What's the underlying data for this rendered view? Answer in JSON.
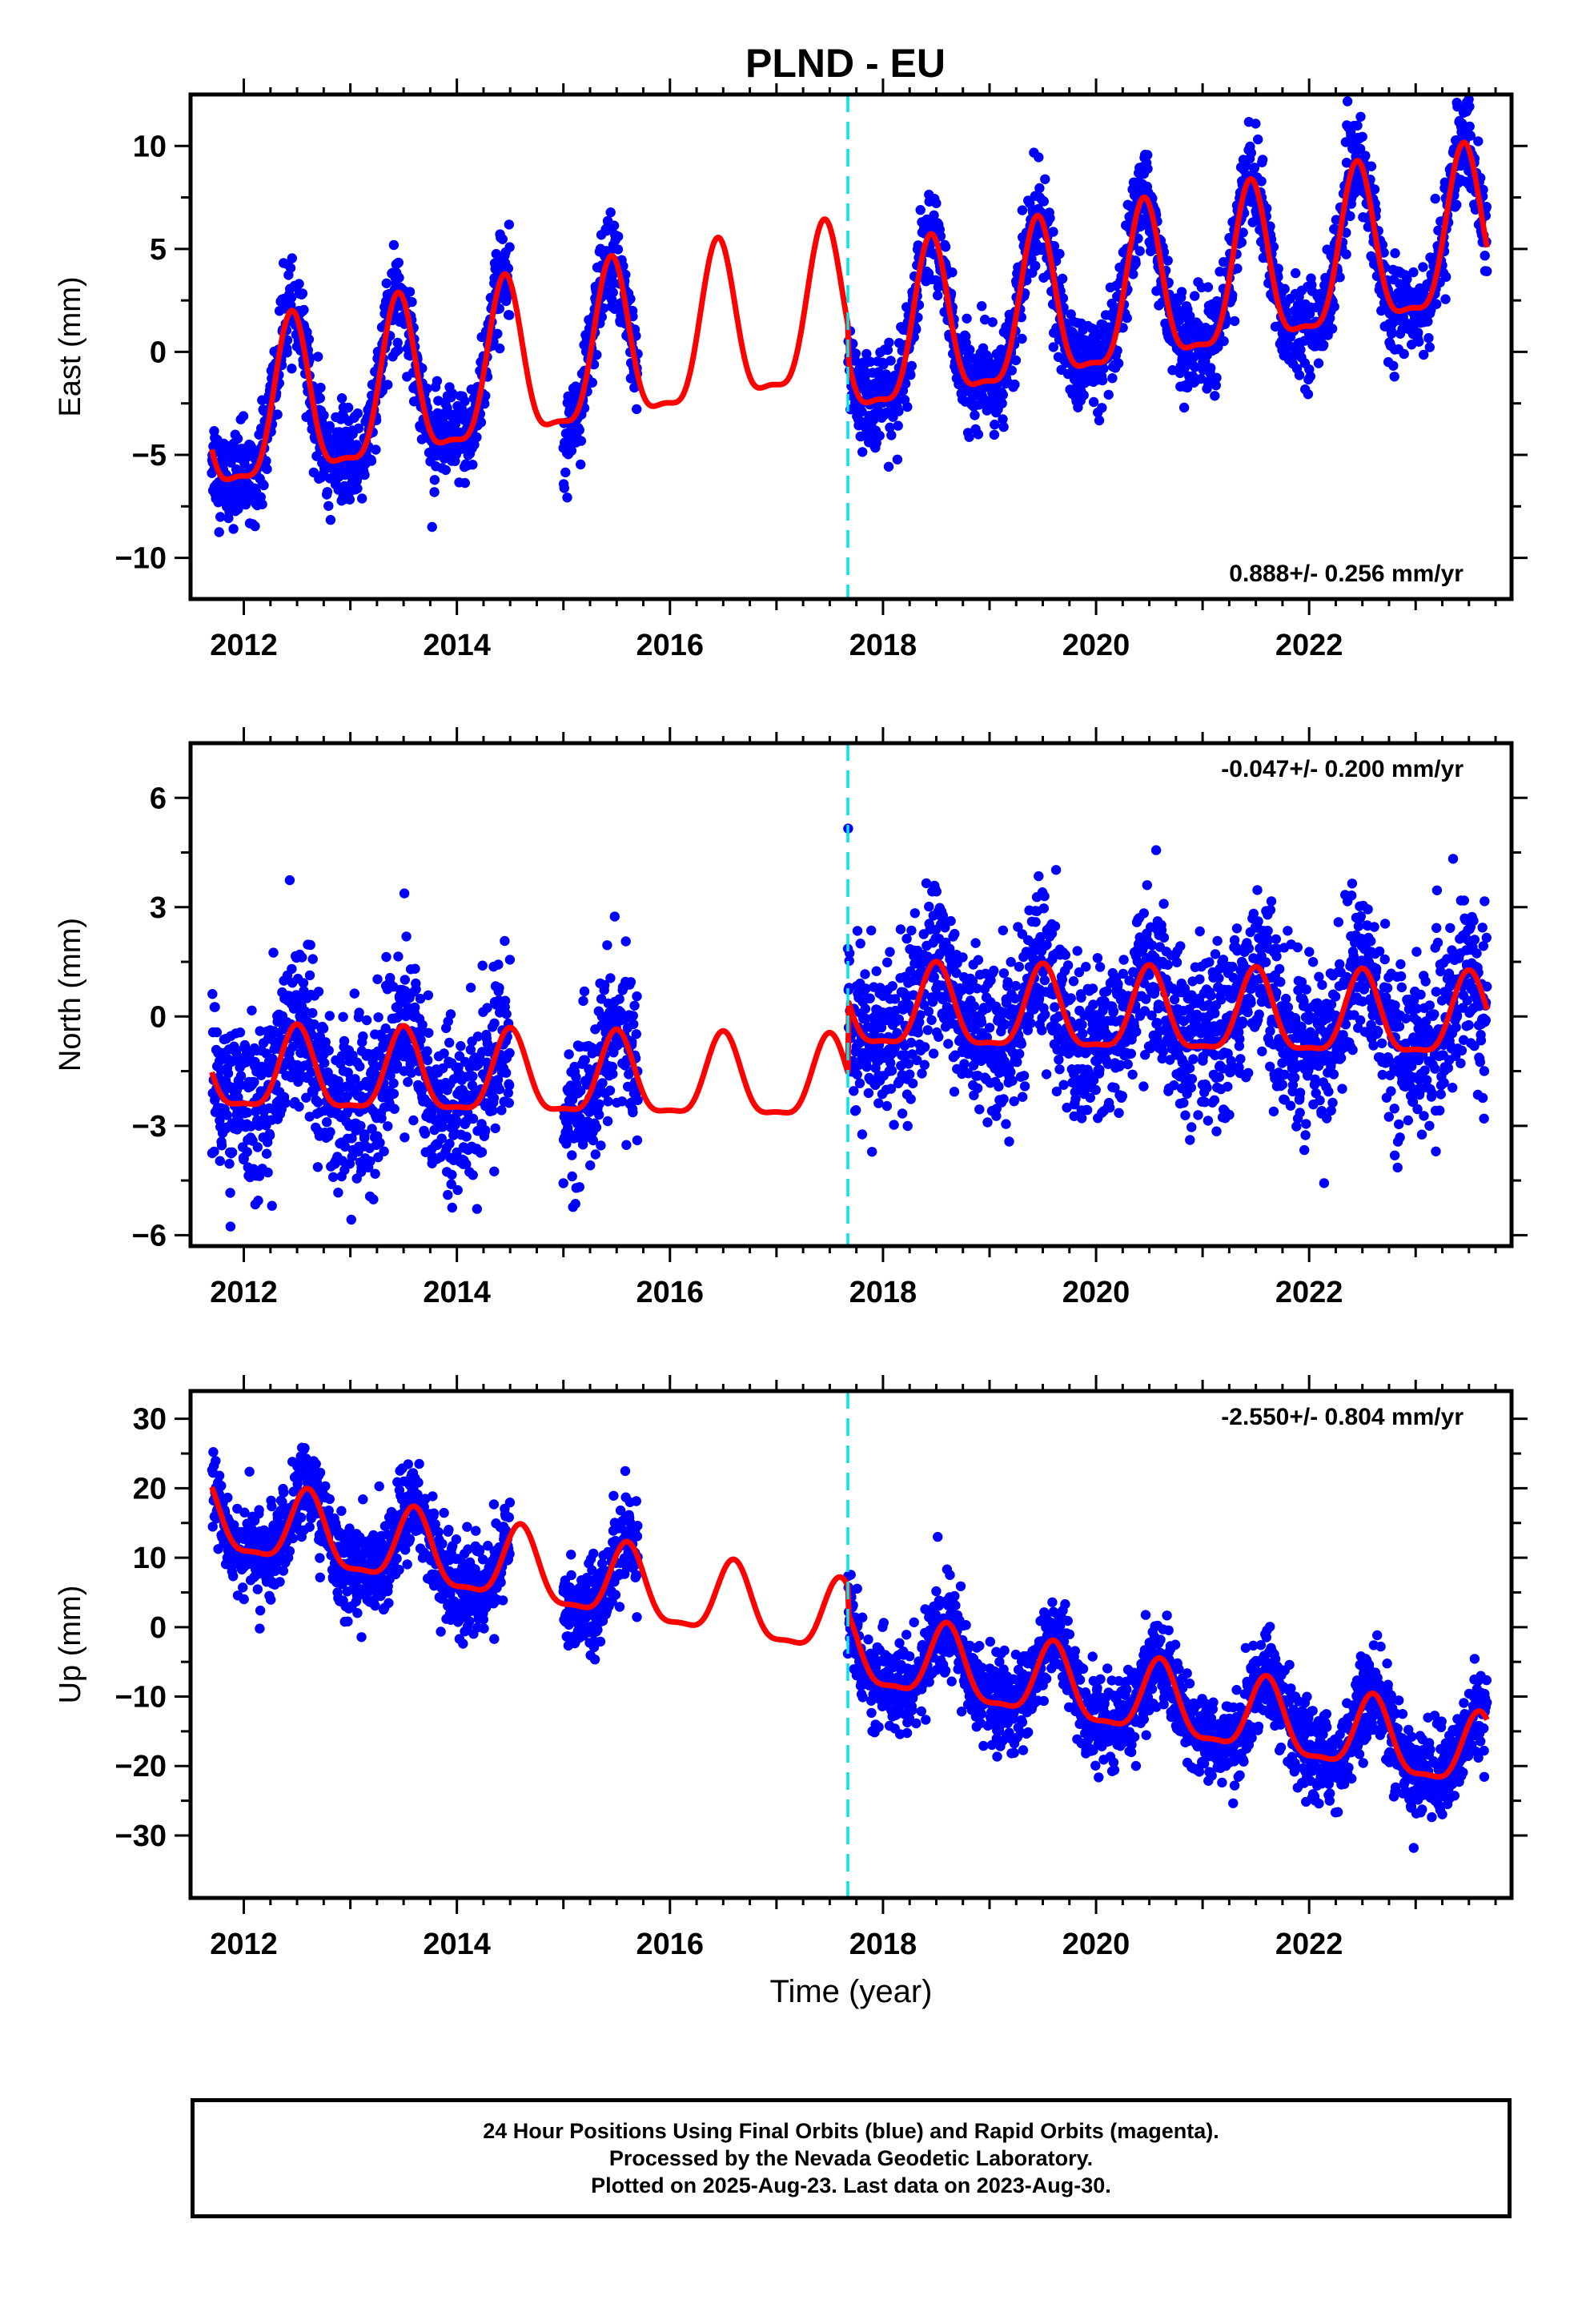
{
  "page": {
    "title": "PLND - EU"
  },
  "chart_data": [
    {
      "type": "scatter",
      "panel": "east",
      "ylabel": "East (mm)",
      "xlabel": "",
      "xlim": [
        2011.5,
        2023.9
      ],
      "ylim": [
        -12,
        12.5
      ],
      "xticks": [
        2012,
        2014,
        2016,
        2018,
        2020,
        2022
      ],
      "yticks": [
        -10,
        -5,
        0,
        5,
        10
      ],
      "trend_label": "0.888+/- 0.256 mm/yr",
      "trend_label_position": "bottom-right",
      "offset_epoch": 2017.67,
      "data_spans": [
        [
          2011.7,
          2014.5
        ],
        [
          2015.0,
          2015.7
        ],
        [
          2017.67,
          2023.67
        ]
      ],
      "model": {
        "mean": -3.6,
        "rate": 0.888,
        "amplitude": 3.8,
        "peak_phase": 0.45,
        "offset": -1.6,
        "noise": 1.1
      },
      "series": [
        {
          "name": "Final Orbits",
          "color": "#0000ff"
        },
        {
          "name": "Model",
          "color": "#ff0000"
        }
      ]
    },
    {
      "type": "scatter",
      "panel": "north",
      "ylabel": "North (mm)",
      "xlabel": "",
      "xlim": [
        2011.5,
        2023.9
      ],
      "ylim": [
        -6.3,
        7.5
      ],
      "xticks": [
        2012,
        2014,
        2016,
        2018,
        2020,
        2022
      ],
      "yticks": [
        -6,
        -3,
        0,
        3,
        6
      ],
      "trend_label": "-0.047+/- 0.200 mm/yr",
      "trend_label_position": "top-right",
      "offset_epoch": 2017.67,
      "data_spans": [
        [
          2011.7,
          2014.5
        ],
        [
          2015.0,
          2015.7
        ],
        [
          2017.67,
          2023.67
        ]
      ],
      "model": {
        "mean": -1.6,
        "rate": -0.047,
        "amplitude": 1.1,
        "peak_phase": 0.5,
        "offset": 2.0,
        "noise": 1.1
      },
      "series": [
        {
          "name": "Final Orbits",
          "color": "#0000ff"
        },
        {
          "name": "Model",
          "color": "#ff0000"
        }
      ]
    },
    {
      "type": "scatter",
      "panel": "up",
      "ylabel": "Up (mm)",
      "xlabel": "Time (year)",
      "xlim": [
        2011.5,
        2023.9
      ],
      "ylim": [
        -39,
        34
      ],
      "xticks": [
        2012,
        2014,
        2016,
        2018,
        2020,
        2022
      ],
      "yticks": [
        -30,
        -20,
        -10,
        0,
        10,
        20,
        30
      ],
      "trend_label": "-2.550+/- 0.804 mm/yr",
      "trend_label_position": "top-right",
      "offset_epoch": 2017.67,
      "data_spans": [
        [
          2011.7,
          2014.5
        ],
        [
          2015.0,
          2015.7
        ],
        [
          2017.67,
          2023.67
        ]
      ],
      "model": {
        "mean": 15.5,
        "rate": -2.55,
        "amplitude": 5.2,
        "peak_phase": 0.6,
        "offset": -4.0,
        "noise": 3.2
      },
      "series": [
        {
          "name": "Final Orbits",
          "color": "#0000ff"
        },
        {
          "name": "Model",
          "color": "#ff0000"
        }
      ]
    }
  ],
  "footer": {
    "line1": "24 Hour Positions Using Final Orbits (blue) and Rapid Orbits (magenta).",
    "line2": "Processed by the Nevada Geodetic Laboratory.",
    "line3": "Plotted on 2025-Aug-23. Last data on 2023-Aug-30."
  }
}
